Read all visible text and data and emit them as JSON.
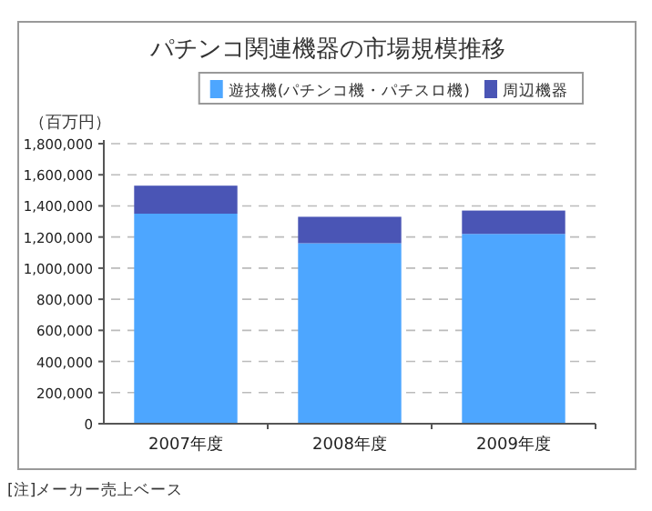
{
  "chart_data": {
    "type": "bar",
    "stacked": true,
    "title": "パチンコ関連機器の市場規模推移",
    "ylabel": "（百万円）",
    "categories": [
      "2007年度",
      "2008年度",
      "2009年度"
    ],
    "series": [
      {
        "name": "遊技機(パチンコ機・パチスロ機)",
        "color": "#4da6ff",
        "values": [
          1350000,
          1160000,
          1220000
        ]
      },
      {
        "name": "周辺機器",
        "color": "#4a55b5",
        "values": [
          180000,
          170000,
          150000
        ]
      }
    ],
    "ylim": [
      0,
      1800000
    ],
    "yticks": [
      0,
      {
        "value": 200000,
        "label": "200,000"
      },
      {
        "value": 400000,
        "label": "400,000"
      },
      {
        "value": 600000,
        "label": "600,000"
      },
      {
        "value": 800000,
        "label": "800,000"
      },
      {
        "value": 1000000,
        "label": "1,000,000"
      },
      {
        "value": 1200000,
        "label": "1,200,000"
      },
      {
        "value": 1400000,
        "label": "1,400,000"
      },
      {
        "value": 1600000,
        "label": "1,600,000"
      },
      {
        "value": 1800000,
        "label": "1,800,000"
      }
    ],
    "grid": "y",
    "legend": "top",
    "annotations": [
      "[注]メーカー売上ベース"
    ]
  }
}
